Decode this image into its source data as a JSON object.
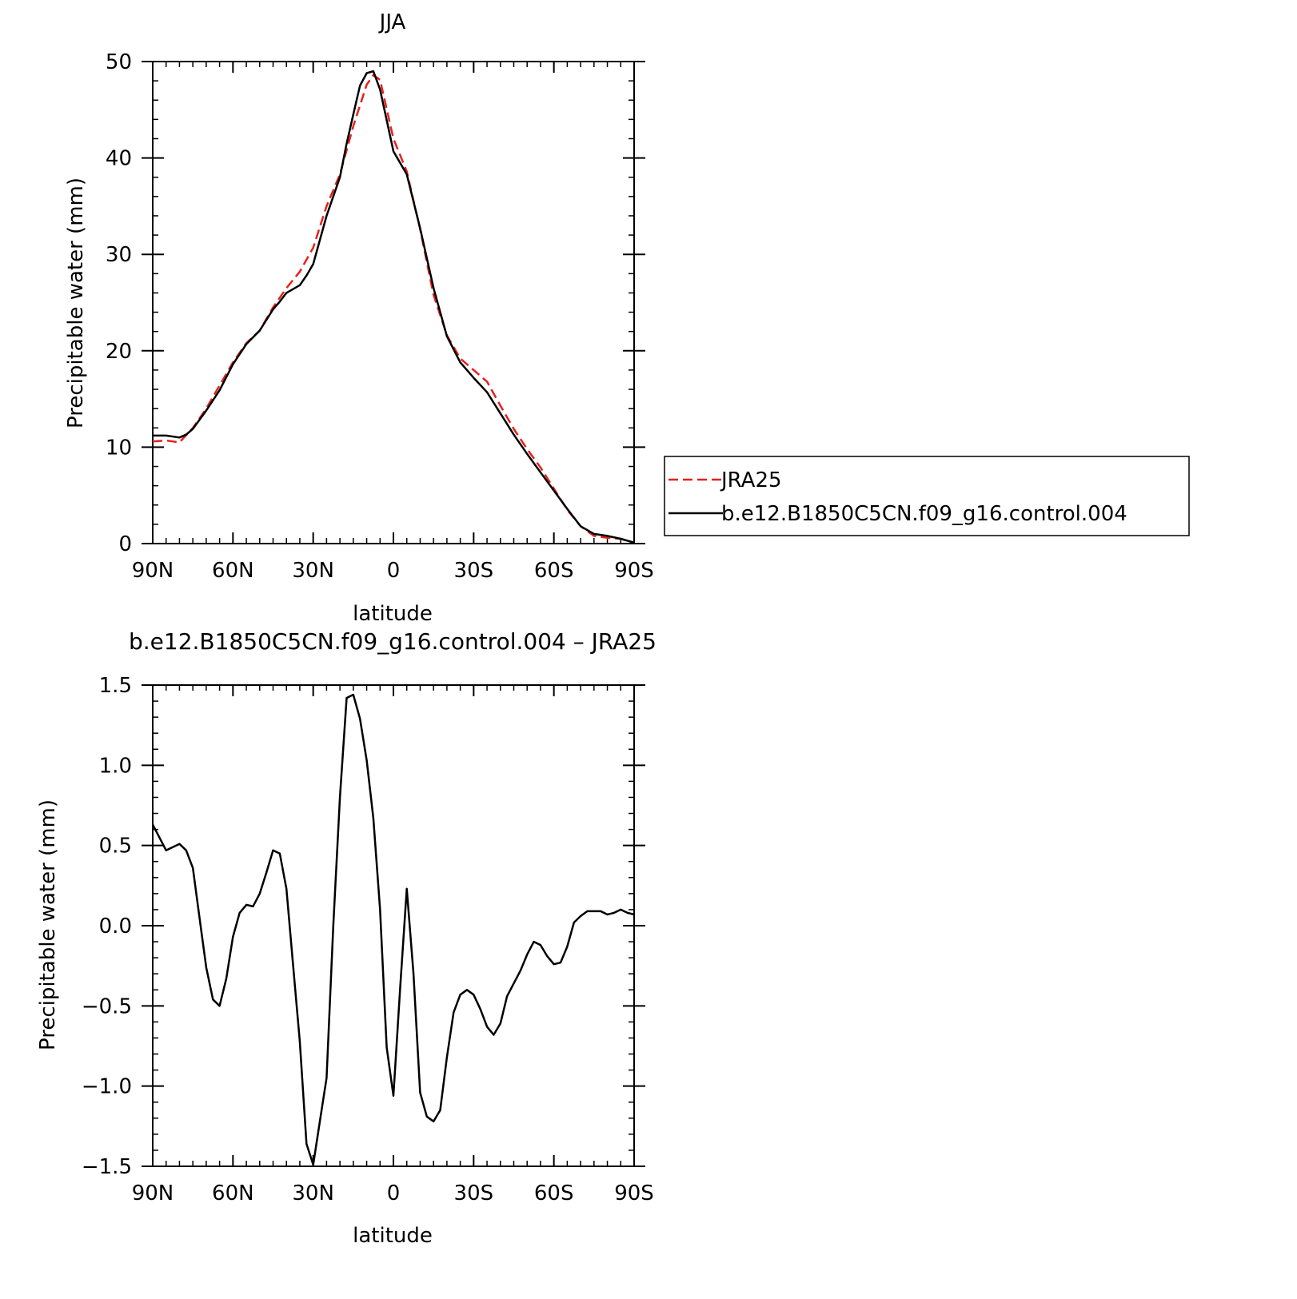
{
  "chart_data": [
    {
      "type": "line",
      "title": "JJA",
      "xlabel": "latitude",
      "ylabel": "Precipitable water (mm)",
      "xlim": [
        90,
        -90
      ],
      "ylim": [
        0,
        50
      ],
      "x_ticks": [
        90,
        60,
        30,
        0,
        -30,
        -60,
        -90
      ],
      "x_tick_labels": [
        "90N",
        "60N",
        "30N",
        "0",
        "30S",
        "60S",
        "90S"
      ],
      "y_ticks": [
        0,
        10,
        20,
        30,
        40,
        50
      ],
      "y_tick_labels": [
        "0",
        "10",
        "20",
        "30",
        "40",
        "50"
      ],
      "legend_position": "right",
      "series": [
        {
          "name": "JRA25",
          "color": "#e8201c",
          "style": "dashed",
          "x": [
            90,
            85,
            80,
            75,
            70,
            65,
            60,
            55,
            50,
            45,
            40,
            35,
            30,
            25,
            20,
            15,
            10,
            7.5,
            5,
            0,
            -5,
            -10,
            -15,
            -20,
            -25,
            -30,
            -35,
            -40,
            -45,
            -50,
            -55,
            -60,
            -65,
            -70,
            -75,
            -80,
            -85,
            -90
          ],
          "values": [
            10.6,
            10.7,
            10.5,
            12,
            14,
            16.4,
            18.8,
            20.8,
            22.1,
            24.5,
            26.5,
            28.2,
            30.7,
            35,
            38.3,
            43.3,
            47.6,
            48.6,
            48.1,
            42,
            38.6,
            32.6,
            25.8,
            21.6,
            19.2,
            18,
            16.8,
            14.3,
            11.9,
            9.8,
            7.9,
            5.7,
            3.5,
            1.8,
            0.8,
            0.6,
            0.5,
            0.1
          ]
        },
        {
          "name": "b.e12.B1850C5CN.f09_g16.control.004",
          "color": "#000000",
          "style": "solid",
          "x": [
            90,
            85,
            80,
            77.5,
            75,
            70,
            65,
            60,
            55,
            50,
            45,
            42.5,
            40,
            35,
            32.5,
            30,
            25,
            20,
            17.5,
            15,
            12.5,
            10,
            7.5,
            5,
            0,
            -5,
            -10,
            -15,
            -20,
            -25,
            -30,
            -35,
            -40,
            -45,
            -50,
            -55,
            -60,
            -65,
            -70,
            -75,
            -80,
            -85,
            -90
          ],
          "values": [
            11.2,
            11.2,
            11,
            11.3,
            11.9,
            13.8,
            15.9,
            18.6,
            20.7,
            22.1,
            24.3,
            25.1,
            26,
            26.8,
            27.8,
            29,
            34,
            38,
            41.5,
            44.5,
            47.5,
            48.8,
            49,
            47.1,
            40.7,
            38.3,
            32.7,
            26.5,
            21.5,
            18.8,
            17.2,
            15.7,
            13.5,
            11.3,
            9.3,
            7.4,
            5.5,
            3.6,
            1.8,
            1,
            0.8,
            0.5,
            0.1
          ]
        }
      ]
    },
    {
      "type": "line",
      "title": "b.e12.B1850C5CN.f09_g16.control.004 – JRA25",
      "xlabel": "latitude",
      "ylabel": "Precipitable water (mm)",
      "xlim": [
        90,
        -90
      ],
      "ylim": [
        -1.5,
        1.5
      ],
      "x_ticks": [
        90,
        60,
        30,
        0,
        -30,
        -60,
        -90
      ],
      "x_tick_labels": [
        "90N",
        "60N",
        "30N",
        "0",
        "30S",
        "60S",
        "90S"
      ],
      "y_ticks": [
        -1.5,
        -1.0,
        -0.5,
        0.0,
        0.5,
        1.0,
        1.5
      ],
      "y_tick_labels": [
        "−1.5",
        "−1.0",
        "−0.5",
        "0.0",
        "0.5",
        "1.0",
        "1.5"
      ],
      "series": [
        {
          "color": "#000000",
          "style": "solid",
          "x": [
            90,
            85,
            80,
            77.5,
            75,
            72.5,
            70,
            67.5,
            65,
            62.5,
            60,
            57.5,
            55,
            52.5,
            50,
            47.5,
            45,
            42.5,
            40,
            37.5,
            35,
            32.5,
            30,
            27.5,
            25,
            22.5,
            20,
            17.5,
            15,
            12.5,
            10,
            7.5,
            5,
            2.5,
            0,
            -2.5,
            -5,
            -7.5,
            -10,
            -12.5,
            -15,
            -17.5,
            -20,
            -22.5,
            -25,
            -27.5,
            -30,
            -32.5,
            -35,
            -37.5,
            -40,
            -42.5,
            -45,
            -47.5,
            -50,
            -52.5,
            -55,
            -57.5,
            -60,
            -62.5,
            -65,
            -67.5,
            -70,
            -72.5,
            -75,
            -77.5,
            -80,
            -82.5,
            -85,
            -87.5,
            -90
          ],
          "values": [
            0.63,
            0.47,
            0.51,
            0.47,
            0.36,
            0.05,
            -0.26,
            -0.46,
            -0.5,
            -0.33,
            -0.07,
            0.08,
            0.13,
            0.12,
            0.2,
            0.33,
            0.47,
            0.45,
            0.23,
            -0.25,
            -0.72,
            -1.36,
            -1.49,
            -1.22,
            -0.95,
            0,
            0.8,
            1.42,
            1.44,
            1.29,
            1.03,
            0.67,
            0.1,
            -0.76,
            -1.06,
            -0.39,
            0.23,
            -0.3,
            -1.04,
            -1.19,
            -1.22,
            -1.15,
            -0.82,
            -0.54,
            -0.43,
            -0.4,
            -0.43,
            -0.52,
            -0.63,
            -0.68,
            -0.61,
            -0.44,
            -0.36,
            -0.28,
            -0.18,
            -0.1,
            -0.12,
            -0.19,
            -0.24,
            -0.23,
            -0.13,
            0.02,
            0.06,
            0.09,
            0.09,
            0.09,
            0.07,
            0.08,
            0.1,
            0.08,
            0.07
          ]
        }
      ]
    }
  ]
}
